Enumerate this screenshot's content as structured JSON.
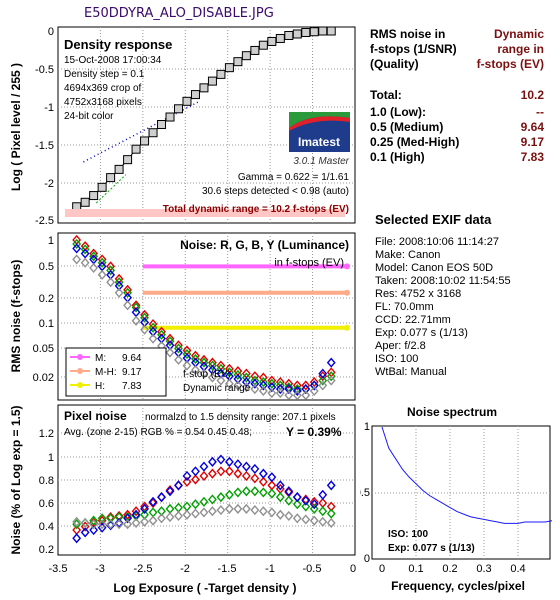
{
  "window_title": "E50DDYRA_ALO_DISABLE.JPG",
  "rms_table": {
    "header_left": [
      "RMS noise in",
      "f-stops (1/SNR)",
      "(Quality)"
    ],
    "header_right": [
      "Dynamic",
      "range in",
      "f-stops (EV)"
    ],
    "rows": [
      {
        "label": "Total:",
        "value": "10.2"
      },
      {
        "label": "1.0   (Low):",
        "value": "--"
      },
      {
        "label": "0.5   (Medium)",
        "value": "9.64"
      },
      {
        "label": "0.25 (Med-High)",
        "value": "9.17"
      },
      {
        "label": "0.1   (High)",
        "value": "7.83"
      }
    ]
  },
  "exif": {
    "title": "Selected EXIF data",
    "rows": [
      "File:  2008:10:06 11:14:27",
      "Make:  Canon",
      "Model: Canon EOS 50D",
      "Taken: 2008:10:02 11:54:55",
      "Res:   4752 x 3168",
      "FL:  70.0mm",
      "CCD:   22.71mm",
      "Exp:  0.077 s  (1/13)",
      "Aper:  f/2.8",
      "ISO:   100",
      "WtBal: Manual"
    ]
  },
  "density_panel": {
    "heading": "Density response",
    "info": [
      "15-Oct-2008 17:00:34",
      "Density step = 0.1",
      "4694x369 crop of",
      "4752x3168 pixels",
      "24-bit color"
    ],
    "logo_text": "Imatest",
    "version": "3.0.1  Master",
    "gamma": "Gamma = 0.622 = 1/1.61",
    "steps": "30.6 steps detected < 0.98 (auto)",
    "total_dr": "Total dynamic range = 10.2 f-stops (EV)",
    "ylabel": "Log ( Pixel level / 255 )",
    "yticks": [
      "0",
      "-0.5",
      "-1",
      "-1.5",
      "-2",
      "-2.5"
    ]
  },
  "noise_panel": {
    "heading": "Noise: R, G, B, Y (Luminance)",
    "subheading": "in f-stops (EV)",
    "ylabel": "RMS noise (f-stops)",
    "yticks": [
      "1",
      "0.5",
      "0.2",
      "0.1",
      "0.05",
      "0.02"
    ],
    "legend": [
      {
        "label": "M:",
        "value": "9.64",
        "color": "#ff66ff"
      },
      {
        "label": "M-H:",
        "value": "9.17",
        "color": "#ffaa88"
      },
      {
        "label": "H:",
        "value": "7.83",
        "color": "#f0f000"
      }
    ],
    "note1": "f-stop (EV)",
    "note2": "Dynamic range"
  },
  "pixel_noise_panel": {
    "heading": "Pixel noise",
    "normalized": "normalzd to 1.5 density range: 207.1 pixels",
    "avg": "Avg. (zone 2-15) RGB % = 0.54  0.45  0.48;",
    "y_value": "Y = 0.39%",
    "ylabel": "Noise (% of Log exp = 1.5)",
    "yticks": [
      "1.2",
      "1",
      "0.8",
      "0.6",
      "0.4",
      "0.2"
    ],
    "xticks": [
      "-3.5",
      "-3",
      "-2.5",
      "-2",
      "-1.5",
      "-1",
      "-0.5",
      "0"
    ],
    "xlabel": "Log Exposure ( -Target density )"
  },
  "spectrum_panel": {
    "title": "Noise spectrum",
    "iso": "ISO:   100",
    "exp": "Exp:  0.077 s  (1/13)",
    "xlabel": "Frequency, cycles/pixel",
    "xticks": [
      "0",
      "0.1",
      "0.2",
      "0.3",
      "0.4"
    ],
    "yticks": [
      "1",
      "0.5",
      "0"
    ]
  },
  "chart_data": [
    {
      "type": "line",
      "title": "Density response",
      "xlabel": "",
      "ylabel": "Log ( Pixel level / 255 )",
      "xlim": [
        -3.5,
        0
      ],
      "ylim": [
        -2.5,
        0
      ],
      "series": [
        {
          "x": [
            -3.28,
            -3.18,
            -3.08,
            -2.98,
            -2.88,
            -2.78,
            -2.68,
            -2.58,
            -2.48,
            -2.38,
            -2.28,
            -2.18,
            -2.08,
            -1.98,
            -1.88,
            -1.78,
            -1.68,
            -1.58,
            -1.48,
            -1.38,
            -1.28,
            -1.18,
            -1.08,
            -0.98,
            -0.88,
            -0.78,
            -0.68,
            -0.58,
            -0.48,
            -0.38,
            -0.28
          ],
          "y": [
            -2.35,
            -2.29,
            -2.2,
            -2.09,
            -1.96,
            -1.85,
            -1.72,
            -1.58,
            -1.47,
            -1.36,
            -1.25,
            -1.15,
            -1.04,
            -0.94,
            -0.85,
            -0.76,
            -0.67,
            -0.58,
            -0.49,
            -0.41,
            -0.33,
            -0.26,
            -0.19,
            -0.14,
            -0.1,
            -0.06,
            -0.04,
            -0.02,
            -0.01,
            0,
            0
          ]
        }
      ]
    },
    {
      "type": "scatter",
      "title": "Noise: R, G, B, Y (Luminance)",
      "ylabel": "RMS noise (f-stops)",
      "xlim": [
        -3.5,
        0
      ],
      "ylim": [
        0.015,
        1.2
      ],
      "yscale": "log",
      "thresholds": [
        {
          "y": 0.5,
          "color": "#ff66ff"
        },
        {
          "y": 0.25,
          "color": "#ffaa88"
        },
        {
          "y": 0.1,
          "color": "#f0f000"
        }
      ],
      "x": [
        -3.28,
        -3.18,
        -3.08,
        -2.98,
        -2.88,
        -2.78,
        -2.68,
        -2.58,
        -2.48,
        -2.38,
        -2.28,
        -2.18,
        -2.08,
        -1.98,
        -1.88,
        -1.78,
        -1.68,
        -1.58,
        -1.48,
        -1.38,
        -1.28,
        -1.18,
        -1.08,
        -0.98,
        -0.88,
        -0.78,
        -0.68,
        -0.58,
        -0.48,
        -0.38,
        -0.28
      ],
      "series": [
        {
          "color": "#e00000",
          "values": [
            1.0,
            0.85,
            0.7,
            0.6,
            0.5,
            0.36,
            0.27,
            0.18,
            0.14,
            0.11,
            0.09,
            0.075,
            0.063,
            0.055,
            0.048,
            0.043,
            0.04,
            0.037,
            0.034,
            0.032,
            0.03,
            0.028,
            0.027,
            0.025,
            0.024,
            0.023,
            0.022,
            0.022,
            0.024,
            0.028,
            0.031
          ]
        },
        {
          "color": "#00a000",
          "values": [
            0.9,
            0.78,
            0.65,
            0.55,
            0.45,
            0.33,
            0.25,
            0.17,
            0.13,
            0.1,
            0.083,
            0.07,
            0.058,
            0.05,
            0.044,
            0.04,
            0.037,
            0.034,
            0.031,
            0.029,
            0.027,
            0.025,
            0.024,
            0.023,
            0.022,
            0.021,
            0.02,
            0.02,
            0.022,
            0.025,
            0.028
          ]
        },
        {
          "color": "#0000e0",
          "values": [
            0.8,
            0.7,
            0.6,
            0.5,
            0.4,
            0.3,
            0.22,
            0.15,
            0.115,
            0.09,
            0.075,
            0.063,
            0.052,
            0.045,
            0.04,
            0.036,
            0.033,
            0.03,
            0.028,
            0.026,
            0.024,
            0.023,
            0.022,
            0.021,
            0.02,
            0.02,
            0.019,
            0.02,
            0.022,
            0.03,
            0.04
          ]
        },
        {
          "color": "#909090",
          "values": [
            0.6,
            0.55,
            0.48,
            0.4,
            0.33,
            0.25,
            0.18,
            0.12,
            0.095,
            0.075,
            0.062,
            0.052,
            0.043,
            0.037,
            0.033,
            0.03,
            0.027,
            0.025,
            0.023,
            0.022,
            0.021,
            0.02,
            0.019,
            0.018,
            0.018,
            0.017,
            0.017,
            0.017,
            0.019,
            0.022,
            0.025
          ]
        }
      ]
    },
    {
      "type": "scatter",
      "title": "Pixel noise",
      "xlabel": "Log Exposure ( -Target density )",
      "ylabel": "Noise (% of Log exp = 1.5)",
      "xlim": [
        -3.5,
        0
      ],
      "ylim": [
        0,
        1.3
      ],
      "x": [
        -3.28,
        -3.18,
        -3.08,
        -2.98,
        -2.88,
        -2.78,
        -2.68,
        -2.58,
        -2.48,
        -2.38,
        -2.28,
        -2.18,
        -2.08,
        -1.98,
        -1.88,
        -1.78,
        -1.68,
        -1.58,
        -1.48,
        -1.38,
        -1.28,
        -1.18,
        -1.08,
        -0.98,
        -0.88,
        -0.78,
        -0.68,
        -0.58,
        -0.48,
        -0.38,
        -0.28
      ],
      "series": [
        {
          "color": "#e00000",
          "values": [
            0.22,
            0.25,
            0.28,
            0.3,
            0.33,
            0.34,
            0.35,
            0.38,
            0.42,
            0.45,
            0.5,
            0.56,
            0.6,
            0.63,
            0.65,
            0.68,
            0.7,
            0.72,
            0.72,
            0.7,
            0.68,
            0.66,
            0.63,
            0.6,
            0.57,
            0.54,
            0.5,
            0.48,
            0.46,
            0.45,
            0.42
          ]
        },
        {
          "color": "#00a000",
          "values": [
            0.27,
            0.28,
            0.3,
            0.32,
            0.32,
            0.33,
            0.33,
            0.34,
            0.35,
            0.37,
            0.38,
            0.4,
            0.41,
            0.42,
            0.44,
            0.46,
            0.48,
            0.5,
            0.52,
            0.54,
            0.55,
            0.55,
            0.54,
            0.53,
            0.5,
            0.47,
            0.44,
            0.42,
            0.4,
            0.38,
            0.36
          ]
        },
        {
          "color": "#0000e0",
          "values": [
            0.15,
            0.2,
            0.22,
            0.24,
            0.26,
            0.28,
            0.32,
            0.35,
            0.4,
            0.46,
            0.5,
            0.55,
            0.6,
            0.68,
            0.72,
            0.76,
            0.8,
            0.82,
            0.8,
            0.78,
            0.76,
            0.74,
            0.7,
            0.67,
            0.6,
            0.55,
            0.5,
            0.47,
            0.44,
            0.52,
            0.6
          ]
        },
        {
          "color": "#909090",
          "values": [
            0.29,
            0.28,
            0.27,
            0.27,
            0.27,
            0.27,
            0.27,
            0.28,
            0.29,
            0.3,
            0.32,
            0.33,
            0.34,
            0.35,
            0.36,
            0.37,
            0.38,
            0.39,
            0.4,
            0.4,
            0.4,
            0.39,
            0.38,
            0.37,
            0.35,
            0.34,
            0.32,
            0.31,
            0.3,
            0.29,
            0.28
          ]
        }
      ]
    },
    {
      "type": "line",
      "title": "Noise spectrum",
      "xlabel": "Frequency, cycles/pixel",
      "xlim": [
        0,
        0.5
      ],
      "ylim": [
        0,
        1
      ],
      "series": [
        {
          "x": [
            0,
            0.02,
            0.04,
            0.06,
            0.08,
            0.1,
            0.12,
            0.14,
            0.16,
            0.18,
            0.2,
            0.22,
            0.24,
            0.26,
            0.28,
            0.3,
            0.32,
            0.34,
            0.36,
            0.38,
            0.4,
            0.42,
            0.44,
            0.46,
            0.48,
            0.5
          ],
          "y": [
            1.0,
            0.84,
            0.76,
            0.68,
            0.62,
            0.57,
            0.52,
            0.48,
            0.45,
            0.42,
            0.39,
            0.36,
            0.34,
            0.32,
            0.31,
            0.3,
            0.29,
            0.28,
            0.27,
            0.27,
            0.27,
            0.28,
            0.28,
            0.28,
            0.28,
            0.29
          ],
          "color": "#1a1aff"
        }
      ]
    }
  ]
}
